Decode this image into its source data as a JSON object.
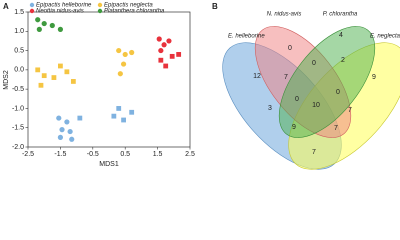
{
  "panels": [
    "A",
    "B"
  ],
  "chart_data": {
    "type": "scatter",
    "xlabel": "MDS1",
    "ylabel": "MDS2",
    "xlim": [
      -2.5,
      2.5
    ],
    "xticks": [
      -2.5,
      -1.5,
      -0.5,
      0.5,
      1.5,
      2.5
    ],
    "ylim": [
      -2.0,
      1.5
    ],
    "yticks": [
      {
        "value": -2.0,
        "label": "-2.0"
      },
      -1.5,
      {
        "value": -1.0,
        "label": "-1.0"
      },
      -0.5,
      {
        "value": 0.0,
        "label": "0.0"
      },
      0.5,
      {
        "value": 1.0,
        "label": "1.0"
      },
      1.5
    ],
    "series": [
      {
        "name": "Epipactis helleborine",
        "color": "#7fb2e0",
        "x": [
          -1.55,
          -1.3,
          -1.45,
          -1.2,
          -1.5,
          -1.15,
          -0.9,
          0.3,
          0.45,
          0.7,
          0.15
        ],
        "values": [
          -1.25,
          -1.35,
          -1.55,
          -1.6,
          -1.75,
          -1.8,
          -1.25,
          -1.0,
          -1.3,
          -1.1,
          -1.2
        ],
        "markers": [
          "circle",
          "circle",
          "circle",
          "circle",
          "circle",
          "circle",
          "square",
          "square",
          "square",
          "square",
          "square"
        ]
      },
      {
        "name": "Epipactis neglecta",
        "color": "#f5c542",
        "x": [
          0.3,
          0.5,
          0.7,
          0.45,
          0.35,
          -2.2,
          -2.0,
          -1.7,
          -1.5,
          -1.3,
          -1.1,
          -2.1
        ],
        "values": [
          0.5,
          0.4,
          0.45,
          0.15,
          -0.1,
          0.0,
          -0.15,
          -0.2,
          0.1,
          -0.05,
          -0.3,
          -0.4
        ],
        "markers": [
          "circle",
          "circle",
          "circle",
          "circle",
          "circle",
          "square",
          "square",
          "square",
          "square",
          "square",
          "square",
          "square"
        ]
      },
      {
        "name": "Neottia nidus-avis",
        "color": "#e8323c",
        "x": [
          1.55,
          1.7,
          1.6,
          1.85,
          1.6,
          1.95,
          2.15,
          1.75
        ],
        "values": [
          0.8,
          0.65,
          0.5,
          0.75,
          0.25,
          0.35,
          0.4,
          0.1
        ],
        "markers": [
          "circle",
          "circle",
          "circle",
          "circle",
          "square",
          "square",
          "square",
          "square"
        ]
      },
      {
        "name": "Platanthera chlorantha",
        "color": "#3f9a3f",
        "x": [
          -2.2,
          -1.75,
          -2.15,
          -1.5,
          -2.0
        ],
        "values": [
          1.3,
          1.15,
          1.05,
          1.05,
          1.2
        ],
        "markers": [
          "circle",
          "circle",
          "circle",
          "circle",
          "circle"
        ]
      }
    ]
  },
  "venn": {
    "sets": [
      "E. helleborine",
      "N. nidus-avis",
      "P. chlorantha",
      "E. neglecta"
    ],
    "regions": [
      12,
      0,
      4,
      9,
      7,
      0,
      2,
      0,
      0,
      3,
      10,
      7,
      9,
      7,
      7
    ]
  }
}
